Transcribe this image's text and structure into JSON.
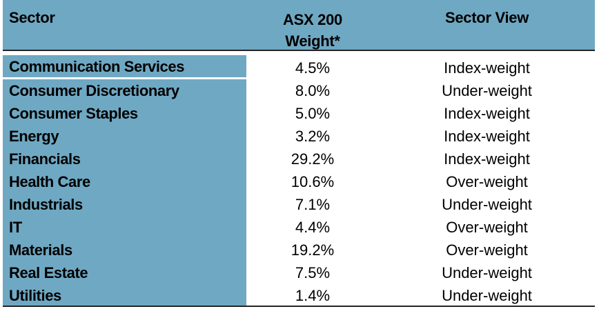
{
  "table": {
    "headers": {
      "sector": "Sector",
      "weight_line1": "ASX 200",
      "weight_line2": "Weight*",
      "view": "Sector View"
    },
    "rows": [
      {
        "sector": "Communication Services",
        "weight": "4.5%",
        "view": "Index-weight"
      },
      {
        "sector": "Consumer Discretionary",
        "weight": "8.0%",
        "view": "Under-weight"
      },
      {
        "sector": "Consumer Staples",
        "weight": "5.0%",
        "view": "Index-weight"
      },
      {
        "sector": "Energy",
        "weight": "3.2%",
        "view": "Index-weight"
      },
      {
        "sector": "Financials",
        "weight": "29.2%",
        "view": "Index-weight"
      },
      {
        "sector": "Health Care",
        "weight": "10.6%",
        "view": "Over-weight"
      },
      {
        "sector": "Industrials",
        "weight": "7.1%",
        "view": "Under-weight"
      },
      {
        "sector": "IT",
        "weight": "4.4%",
        "view": "Over-weight"
      },
      {
        "sector": "Materials",
        "weight": "19.2%",
        "view": "Over-weight"
      },
      {
        "sector": "Real Estate",
        "weight": "7.5%",
        "view": "Under-weight"
      },
      {
        "sector": "Utilities",
        "weight": "1.4%",
        "view": "Under-weight"
      }
    ]
  },
  "colors": {
    "header_bg": "#6fa8c3",
    "sector_col_bg": "#6fa8c3",
    "rule": "#222222"
  }
}
